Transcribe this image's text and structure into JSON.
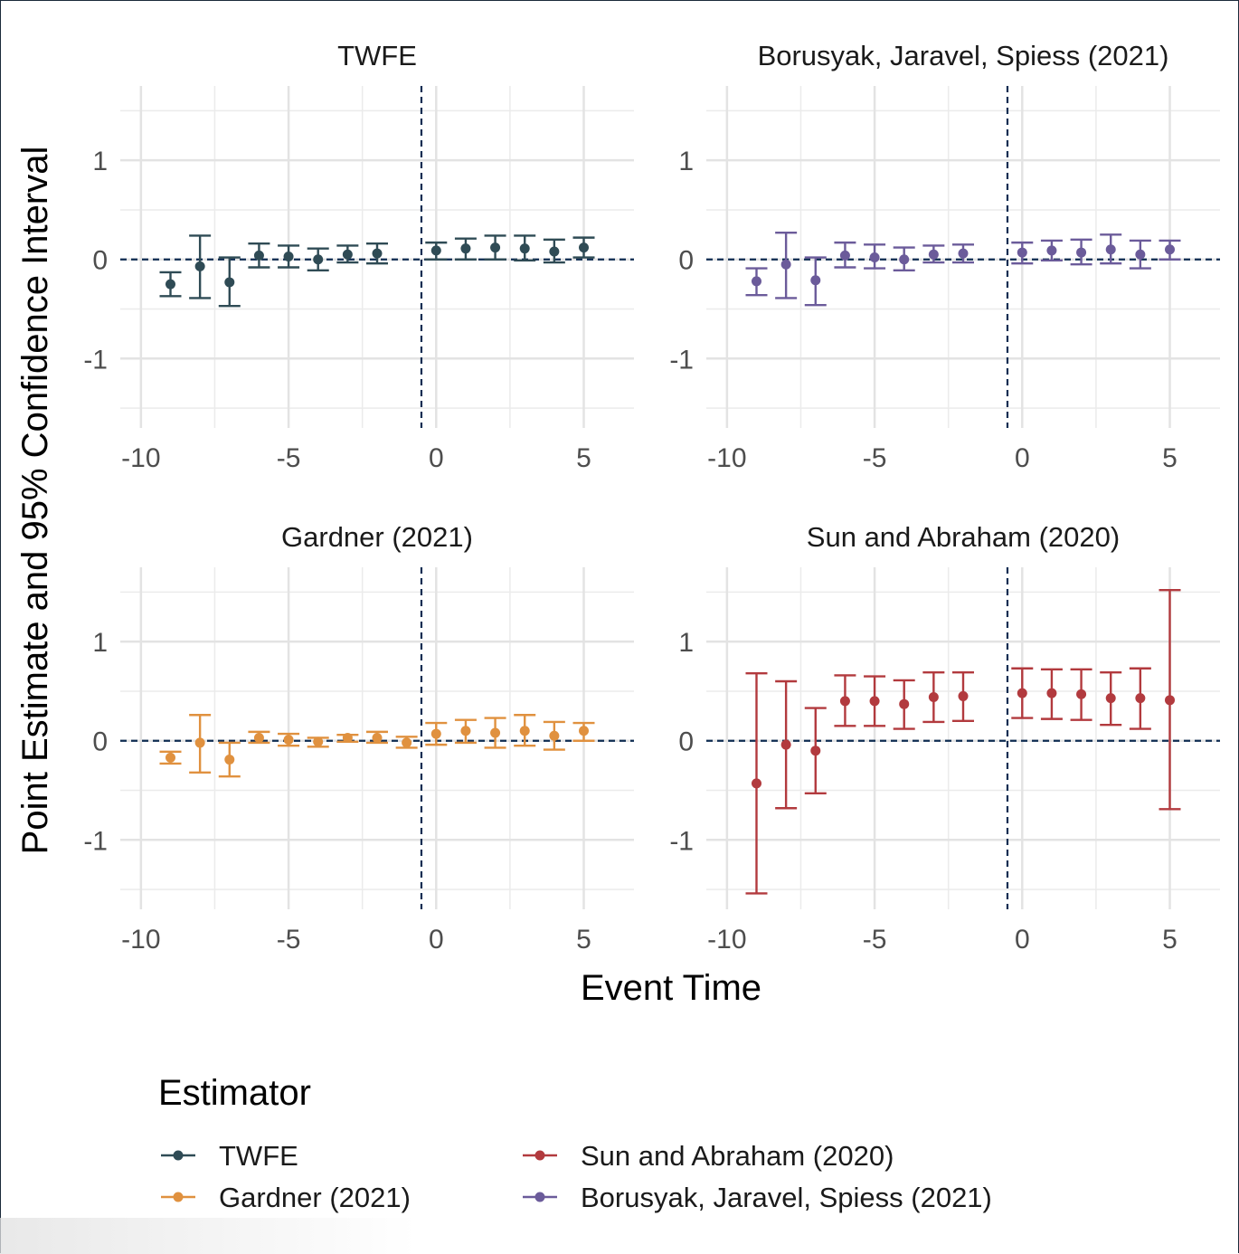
{
  "chart_data": {
    "type": "scatter",
    "subtype": "event-study point estimates with 95% confidence interval error bars, faceted 2x2",
    "ylabel": "Point Estimate and 95% Confidence Interval",
    "xlabel": "Event Time",
    "x_ticks": [
      "-10",
      "-5",
      "0",
      "5"
    ],
    "y_ticks": [
      "-1",
      "0",
      "1"
    ],
    "xlim": [
      -10.7,
      6.7
    ],
    "ylim": [
      -1.7,
      1.75
    ],
    "reference_lines": {
      "horizontal": 0,
      "vertical": -0.5,
      "style": "dashed",
      "color": "#0f2d52"
    },
    "grid": true,
    "legend": {
      "title": "Estimator",
      "placement": "bottom",
      "entries": [
        {
          "label": "TWFE",
          "color": "#2f4b55"
        },
        {
          "label": "Gardner (2021)",
          "color": "#e0913f"
        },
        {
          "label": "Sun and Abraham (2020)",
          "color": "#b23a3e"
        },
        {
          "label": "Borusyak, Jaravel, Spiess (2021)",
          "color": "#6b5b9a"
        }
      ]
    },
    "panels": [
      {
        "title": "TWFE",
        "color": "#2f4b55",
        "points": [
          {
            "x": -9,
            "y": -0.25,
            "lo": -0.37,
            "hi": -0.13
          },
          {
            "x": -8,
            "y": -0.07,
            "lo": -0.39,
            "hi": 0.24
          },
          {
            "x": -7,
            "y": -0.23,
            "lo": -0.47,
            "hi": 0.02
          },
          {
            "x": -6,
            "y": 0.04,
            "lo": -0.08,
            "hi": 0.16
          },
          {
            "x": -5,
            "y": 0.03,
            "lo": -0.08,
            "hi": 0.14
          },
          {
            "x": -4,
            "y": 0.0,
            "lo": -0.11,
            "hi": 0.11
          },
          {
            "x": -3,
            "y": 0.05,
            "lo": -0.03,
            "hi": 0.14
          },
          {
            "x": -2,
            "y": 0.06,
            "lo": -0.04,
            "hi": 0.16
          },
          {
            "x": 0,
            "y": 0.09,
            "lo": 0.0,
            "hi": 0.17
          },
          {
            "x": 1,
            "y": 0.11,
            "lo": 0.0,
            "hi": 0.21
          },
          {
            "x": 2,
            "y": 0.12,
            "lo": 0.0,
            "hi": 0.24
          },
          {
            "x": 3,
            "y": 0.11,
            "lo": -0.01,
            "hi": 0.24
          },
          {
            "x": 4,
            "y": 0.08,
            "lo": -0.03,
            "hi": 0.2
          },
          {
            "x": 5,
            "y": 0.12,
            "lo": 0.02,
            "hi": 0.22
          }
        ]
      },
      {
        "title": "Borusyak, Jaravel, Spiess (2021)",
        "color": "#6b5b9a",
        "points": [
          {
            "x": -9,
            "y": -0.22,
            "lo": -0.36,
            "hi": -0.09
          },
          {
            "x": -8,
            "y": -0.05,
            "lo": -0.39,
            "hi": 0.27
          },
          {
            "x": -7,
            "y": -0.21,
            "lo": -0.46,
            "hi": 0.02
          },
          {
            "x": -6,
            "y": 0.04,
            "lo": -0.08,
            "hi": 0.17
          },
          {
            "x": -5,
            "y": 0.02,
            "lo": -0.09,
            "hi": 0.15
          },
          {
            "x": -4,
            "y": 0.0,
            "lo": -0.11,
            "hi": 0.12
          },
          {
            "x": -3,
            "y": 0.05,
            "lo": -0.03,
            "hi": 0.14
          },
          {
            "x": -2,
            "y": 0.06,
            "lo": -0.03,
            "hi": 0.15
          },
          {
            "x": 0,
            "y": 0.07,
            "lo": -0.04,
            "hi": 0.17
          },
          {
            "x": 1,
            "y": 0.09,
            "lo": -0.01,
            "hi": 0.19
          },
          {
            "x": 2,
            "y": 0.07,
            "lo": -0.05,
            "hi": 0.2
          },
          {
            "x": 3,
            "y": 0.1,
            "lo": -0.04,
            "hi": 0.25
          },
          {
            "x": 4,
            "y": 0.05,
            "lo": -0.09,
            "hi": 0.19
          },
          {
            "x": 5,
            "y": 0.1,
            "lo": 0.0,
            "hi": 0.19
          }
        ]
      },
      {
        "title": "Gardner (2021)",
        "color": "#e0913f",
        "points": [
          {
            "x": -9,
            "y": -0.17,
            "lo": -0.23,
            "hi": -0.11
          },
          {
            "x": -8,
            "y": -0.02,
            "lo": -0.32,
            "hi": 0.26
          },
          {
            "x": -7,
            "y": -0.19,
            "lo": -0.36,
            "hi": -0.02
          },
          {
            "x": -6,
            "y": 0.03,
            "lo": -0.02,
            "hi": 0.09
          },
          {
            "x": -5,
            "y": 0.01,
            "lo": -0.05,
            "hi": 0.07
          },
          {
            "x": -4,
            "y": -0.01,
            "lo": -0.06,
            "hi": 0.03
          },
          {
            "x": -3,
            "y": 0.03,
            "lo": -0.01,
            "hi": 0.06
          },
          {
            "x": -2,
            "y": 0.03,
            "lo": -0.02,
            "hi": 0.09
          },
          {
            "x": -1,
            "y": -0.02,
            "lo": -0.07,
            "hi": 0.04
          },
          {
            "x": 0,
            "y": 0.07,
            "lo": -0.04,
            "hi": 0.18
          },
          {
            "x": 1,
            "y": 0.1,
            "lo": -0.02,
            "hi": 0.21
          },
          {
            "x": 2,
            "y": 0.08,
            "lo": -0.07,
            "hi": 0.23
          },
          {
            "x": 3,
            "y": 0.1,
            "lo": -0.05,
            "hi": 0.26
          },
          {
            "x": 4,
            "y": 0.05,
            "lo": -0.09,
            "hi": 0.19
          },
          {
            "x": 5,
            "y": 0.1,
            "lo": 0.0,
            "hi": 0.18
          }
        ]
      },
      {
        "title": "Sun and Abraham (2020)",
        "color": "#b23a3e",
        "points": [
          {
            "x": -9,
            "y": -0.43,
            "lo": -1.54,
            "hi": 0.68
          },
          {
            "x": -8,
            "y": -0.04,
            "lo": -0.68,
            "hi": 0.6
          },
          {
            "x": -7,
            "y": -0.1,
            "lo": -0.53,
            "hi": 0.33
          },
          {
            "x": -6,
            "y": 0.4,
            "lo": 0.15,
            "hi": 0.66
          },
          {
            "x": -5,
            "y": 0.4,
            "lo": 0.15,
            "hi": 0.65
          },
          {
            "x": -4,
            "y": 0.37,
            "lo": 0.12,
            "hi": 0.61
          },
          {
            "x": -3,
            "y": 0.44,
            "lo": 0.19,
            "hi": 0.69
          },
          {
            "x": -2,
            "y": 0.45,
            "lo": 0.2,
            "hi": 0.69
          },
          {
            "x": 0,
            "y": 0.48,
            "lo": 0.23,
            "hi": 0.73
          },
          {
            "x": 1,
            "y": 0.48,
            "lo": 0.22,
            "hi": 0.72
          },
          {
            "x": 2,
            "y": 0.47,
            "lo": 0.21,
            "hi": 0.72
          },
          {
            "x": 3,
            "y": 0.43,
            "lo": 0.16,
            "hi": 0.69
          },
          {
            "x": 4,
            "y": 0.43,
            "lo": 0.12,
            "hi": 0.73
          },
          {
            "x": 5,
            "y": 0.41,
            "lo": -0.69,
            "hi": 1.52
          }
        ]
      }
    ]
  }
}
